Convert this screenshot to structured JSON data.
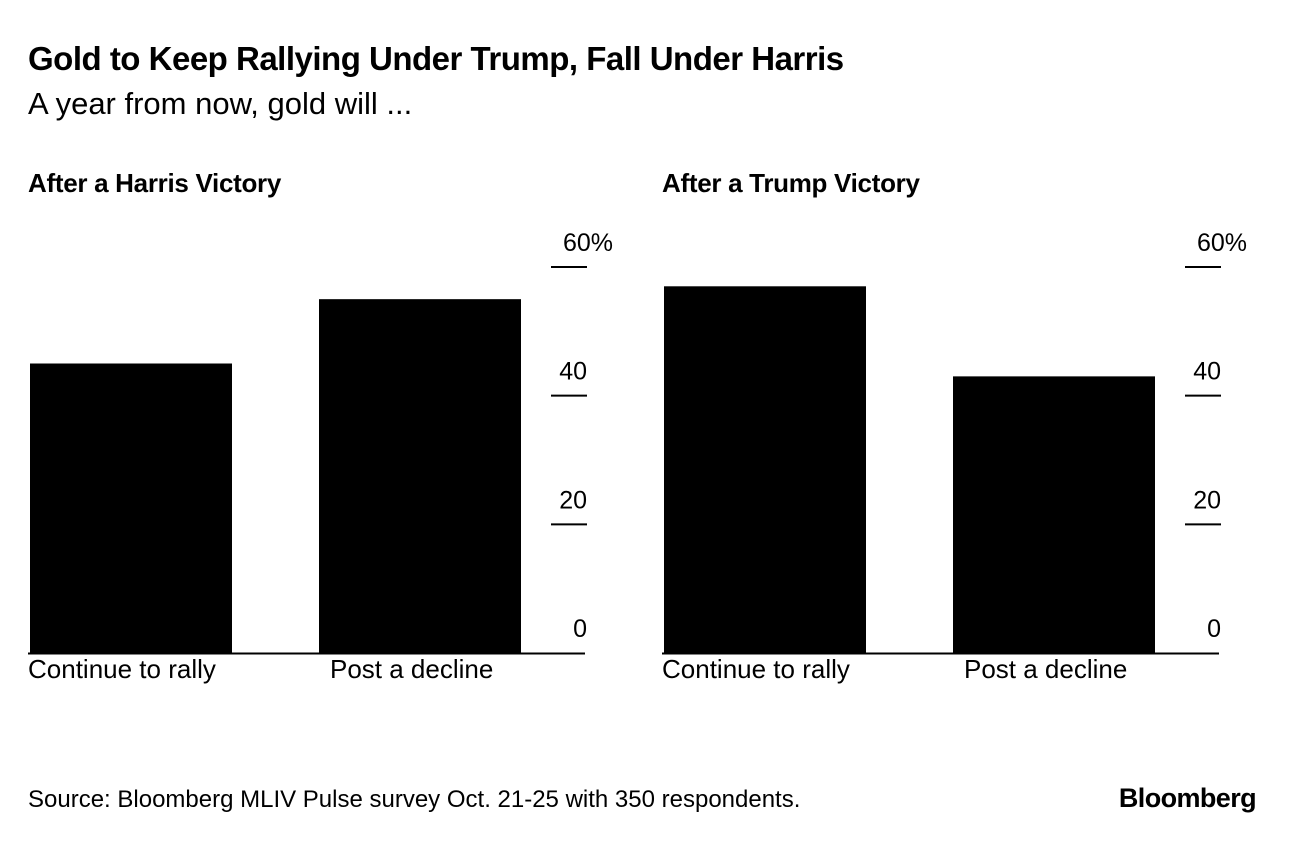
{
  "title": "Gold to Keep Rallying Under Trump, Fall Under Harris",
  "subtitle": "A year from now, gold will ...",
  "source": "Source: Bloomberg MLIV Pulse survey Oct. 21-25 with 350 respondents.",
  "brand": "Bloomberg",
  "colors": {
    "bar": "#000000",
    "background": "#ffffff",
    "text": "#000000"
  },
  "chart_data": [
    {
      "type": "bar",
      "title": "After a Harris Victory",
      "categories": [
        "Continue to rally",
        "Post a decline"
      ],
      "values": [
        45,
        55
      ],
      "ylim": [
        0,
        60
      ],
      "yticks": [
        0,
        20,
        40,
        60
      ],
      "ytick_labels": [
        "0",
        "20",
        "40",
        "60%"
      ],
      "xlabel": "",
      "ylabel": "",
      "grid": false
    },
    {
      "type": "bar",
      "title": "After a Trump Victory",
      "categories": [
        "Continue to rally",
        "Post a decline"
      ],
      "values": [
        57,
        43
      ],
      "ylim": [
        0,
        60
      ],
      "yticks": [
        0,
        20,
        40,
        60
      ],
      "ytick_labels": [
        "0",
        "20",
        "40",
        "60%"
      ],
      "xlabel": "",
      "ylabel": "",
      "grid": false
    }
  ]
}
